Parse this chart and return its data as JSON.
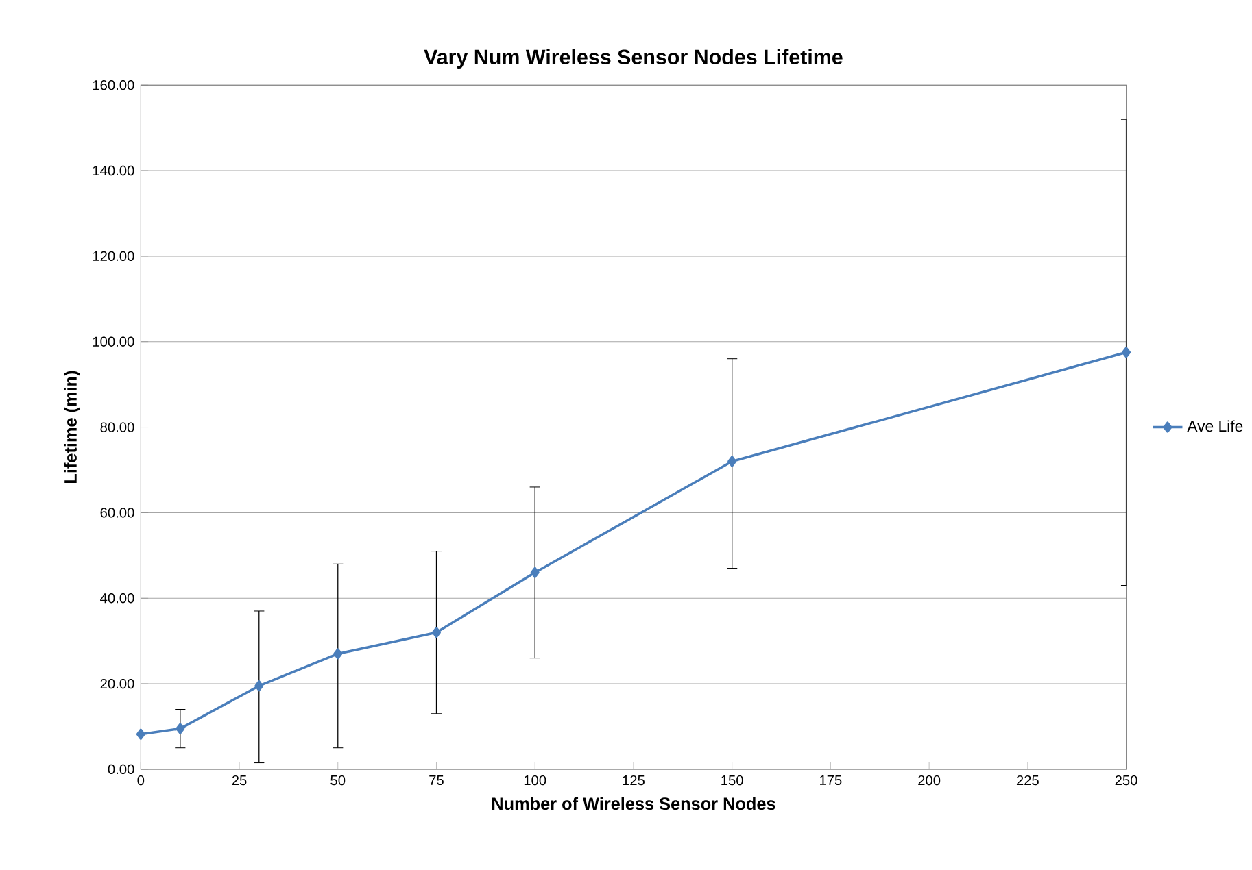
{
  "chart_data": {
    "type": "line",
    "title": "Vary Num Wireless Sensor Nodes Lifetime",
    "xlabel": "Number of Wireless Sensor Nodes",
    "ylabel": "Lifetime (min)",
    "x": [
      0,
      10,
      30,
      50,
      75,
      100,
      150,
      250
    ],
    "series": [
      {
        "name": "Ave Life",
        "color": "#4a7ebb",
        "values": [
          8.2,
          9.5,
          19.5,
          27,
          32,
          46,
          72,
          97.5
        ],
        "errors": [
          null,
          [
            5,
            14
          ],
          [
            1.5,
            37
          ],
          [
            5,
            48
          ],
          [
            13,
            51
          ],
          [
            26,
            66
          ],
          [
            47,
            96
          ],
          [
            43,
            152
          ]
        ]
      }
    ],
    "xlim": [
      0,
      250
    ],
    "xticks": [
      0,
      25,
      50,
      75,
      100,
      125,
      150,
      175,
      200,
      225,
      250
    ],
    "ylim": [
      0,
      160
    ],
    "yticks": [
      {
        "value": 0,
        "label": "0.00"
      },
      {
        "value": 20,
        "label": "20.00"
      },
      {
        "value": 40,
        "label": "40.00"
      },
      {
        "value": 60,
        "label": "60.00"
      },
      {
        "value": 80,
        "label": "80.00"
      },
      {
        "value": 100,
        "label": "100.00"
      },
      {
        "value": 120,
        "label": "120.00"
      },
      {
        "value": 140,
        "label": "140.00"
      },
      {
        "value": 160,
        "label": "160.00"
      }
    ],
    "grid": "y",
    "legend": "right",
    "marker": "diamond",
    "line_style": "solid"
  }
}
